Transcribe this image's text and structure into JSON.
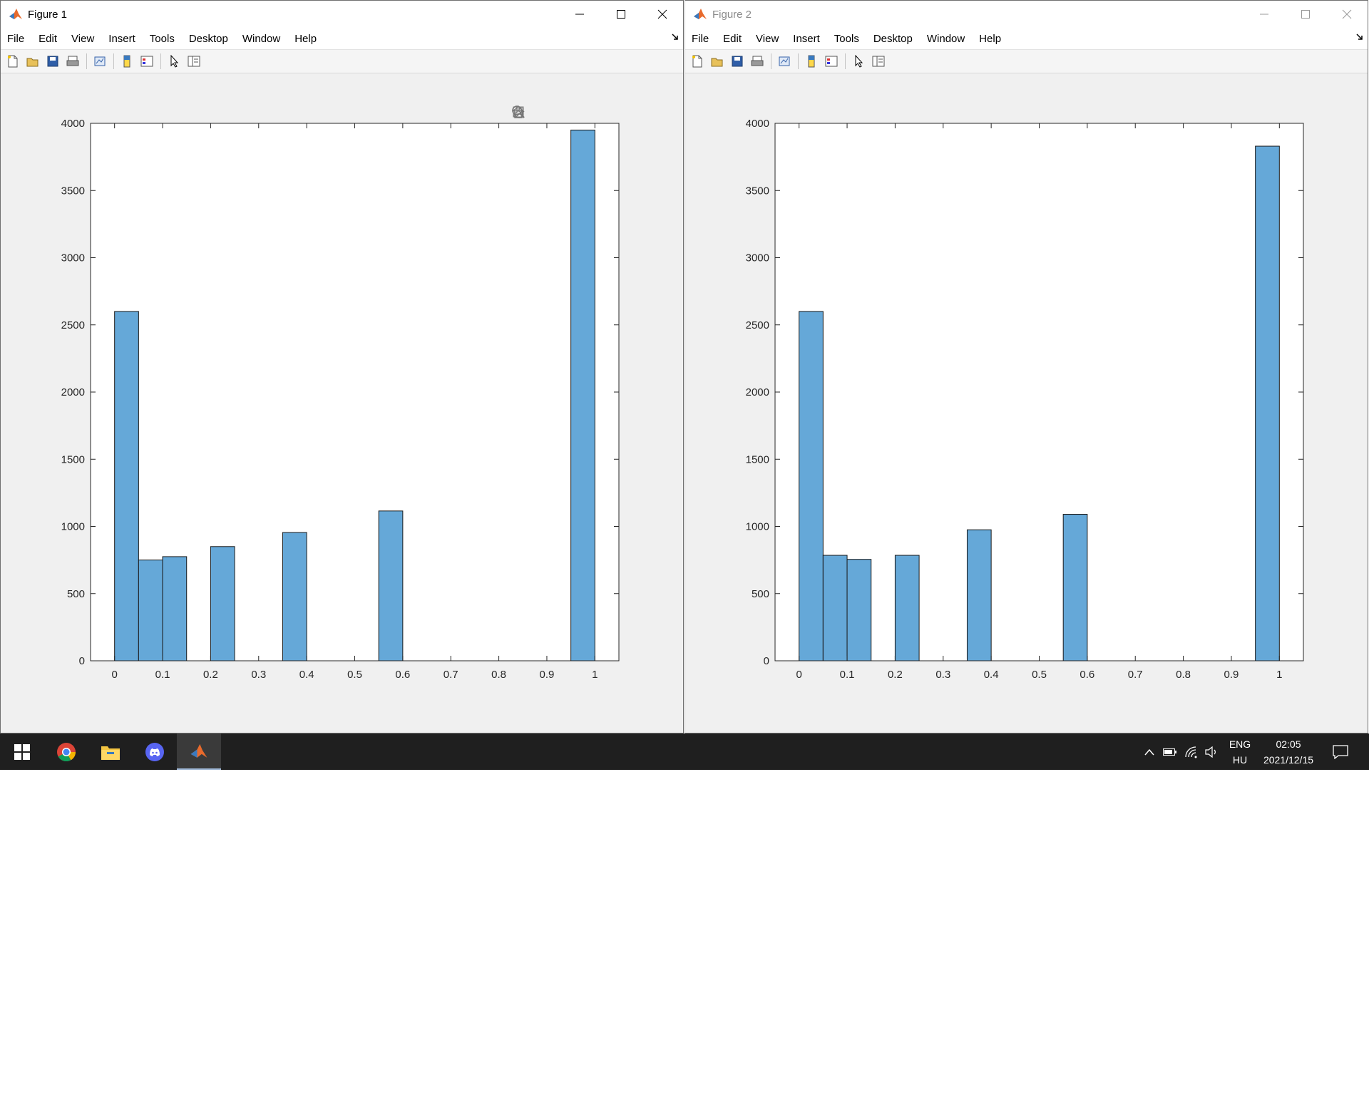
{
  "windows": [
    {
      "title": "Figure 1",
      "active": true,
      "menu": [
        "File",
        "Edit",
        "View",
        "Insert",
        "Tools",
        "Desktop",
        "Window",
        "Help"
      ],
      "chart_index": 0
    },
    {
      "title": "Figure 2",
      "active": false,
      "menu": [
        "File",
        "Edit",
        "View",
        "Insert",
        "Tools",
        "Desktop",
        "Window",
        "Help"
      ],
      "chart_index": 1
    }
  ],
  "chart_data": [
    {
      "type": "bar",
      "title": "",
      "xlabel": "",
      "ylabel": "",
      "bar_color": "#65a8d8",
      "bin_width": 0.05,
      "x_bin_starts": [
        0,
        0.05,
        0.1,
        0.2,
        0.35,
        0.55,
        0.95
      ],
      "values": [
        2600,
        750,
        775,
        850,
        955,
        1115,
        3950
      ],
      "xlim": [
        -0.05,
        1.05
      ],
      "ylim": [
        0,
        4000
      ],
      "xticks": [
        "0",
        "0.1",
        "0.2",
        "0.3",
        "0.4",
        "0.5",
        "0.6",
        "0.7",
        "0.8",
        "0.9",
        "1"
      ],
      "yticks": [
        "0",
        "500",
        "1000",
        "1500",
        "2000",
        "2500",
        "3000",
        "3500",
        "4000"
      ],
      "grid": false
    },
    {
      "type": "bar",
      "title": "",
      "xlabel": "",
      "ylabel": "",
      "bar_color": "#65a8d8",
      "bin_width": 0.05,
      "x_bin_starts": [
        0,
        0.05,
        0.1,
        0.2,
        0.35,
        0.55,
        0.95
      ],
      "values": [
        2600,
        785,
        755,
        785,
        975,
        1090,
        3830
      ],
      "xlim": [
        -0.05,
        1.05
      ],
      "ylim": [
        0,
        4000
      ],
      "xticks": [
        "0",
        "0.1",
        "0.2",
        "0.3",
        "0.4",
        "0.5",
        "0.6",
        "0.7",
        "0.8",
        "0.9",
        "1"
      ],
      "yticks": [
        "0",
        "500",
        "1000",
        "1500",
        "2000",
        "2500",
        "3000",
        "3500",
        "4000"
      ],
      "grid": false
    }
  ],
  "taskbar": {
    "apps": [
      "windows-start",
      "chrome",
      "file-explorer",
      "discord",
      "matlab"
    ],
    "language_line1": "ENG",
    "language_line2": "HU",
    "time": "02:05",
    "date": "2021/12/15"
  }
}
